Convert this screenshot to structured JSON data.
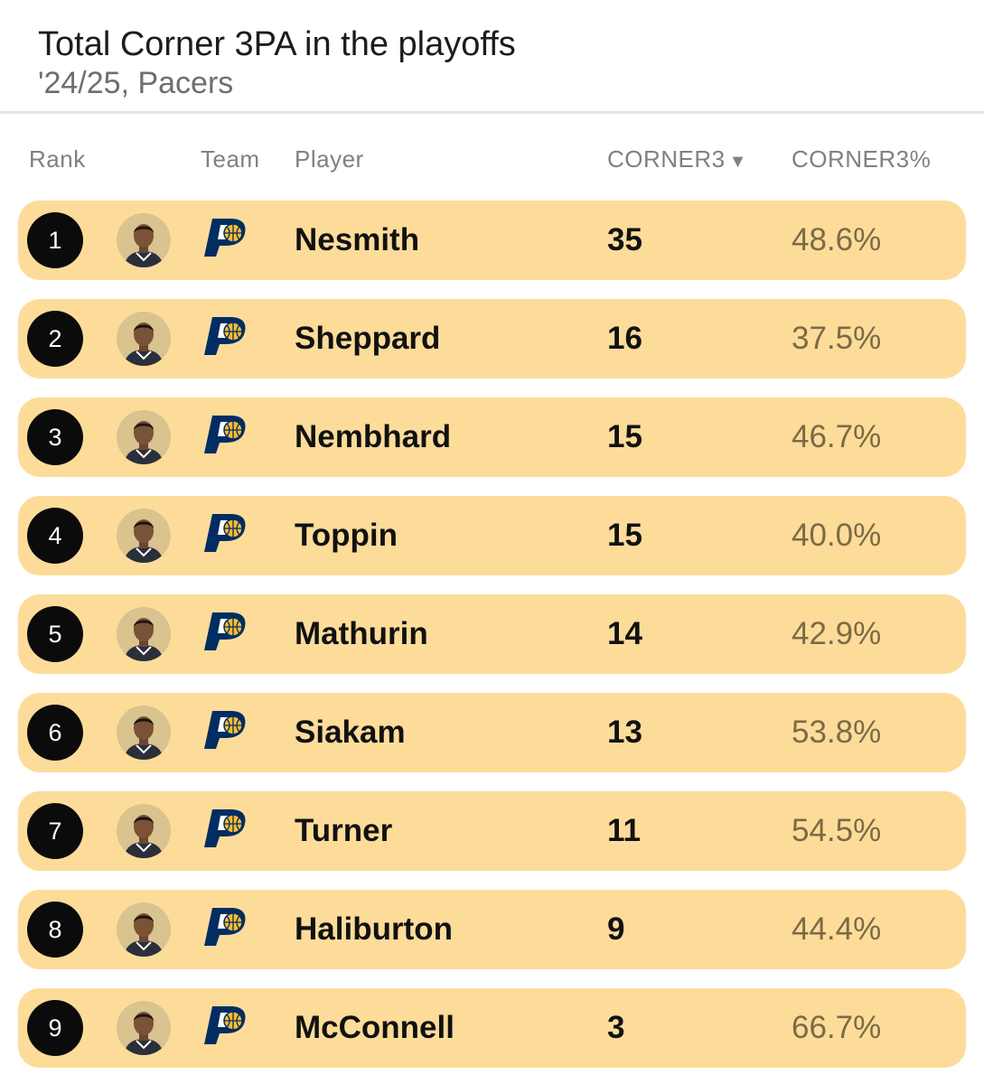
{
  "header": {
    "title": "Total Corner 3PA in the playoffs",
    "subtitle": "'24/25, Pacers"
  },
  "columns": {
    "rank": "Rank",
    "team": "Team",
    "player": "Player",
    "corner3": "CORNER3",
    "corner3_sort_icon": "▼",
    "corner3_pct": "CORNER3%"
  },
  "colors": {
    "row_background": "#fddc9a",
    "rank_badge": "#0b0b0b",
    "pct_text": "#7c6a45",
    "pacers_navy": "#002d62",
    "pacers_gold": "#fdbb30"
  },
  "rows": [
    {
      "rank": "1",
      "team_icon": "pacers-logo-icon",
      "player": "Nesmith",
      "corner3": "35",
      "corner3_pct": "48.6%"
    },
    {
      "rank": "2",
      "team_icon": "pacers-logo-icon",
      "player": "Sheppard",
      "corner3": "16",
      "corner3_pct": "37.5%"
    },
    {
      "rank": "3",
      "team_icon": "pacers-logo-icon",
      "player": "Nembhard",
      "corner3": "15",
      "corner3_pct": "46.7%"
    },
    {
      "rank": "4",
      "team_icon": "pacers-logo-icon",
      "player": "Toppin",
      "corner3": "15",
      "corner3_pct": "40.0%"
    },
    {
      "rank": "5",
      "team_icon": "pacers-logo-icon",
      "player": "Mathurin",
      "corner3": "14",
      "corner3_pct": "42.9%"
    },
    {
      "rank": "6",
      "team_icon": "pacers-logo-icon",
      "player": "Siakam",
      "corner3": "13",
      "corner3_pct": "53.8%"
    },
    {
      "rank": "7",
      "team_icon": "pacers-logo-icon",
      "player": "Turner",
      "corner3": "11",
      "corner3_pct": "54.5%"
    },
    {
      "rank": "8",
      "team_icon": "pacers-logo-icon",
      "player": "Haliburton",
      "corner3": "9",
      "corner3_pct": "44.4%"
    },
    {
      "rank": "9",
      "team_icon": "pacers-logo-icon",
      "player": "McConnell",
      "corner3": "3",
      "corner3_pct": "66.7%"
    }
  ]
}
